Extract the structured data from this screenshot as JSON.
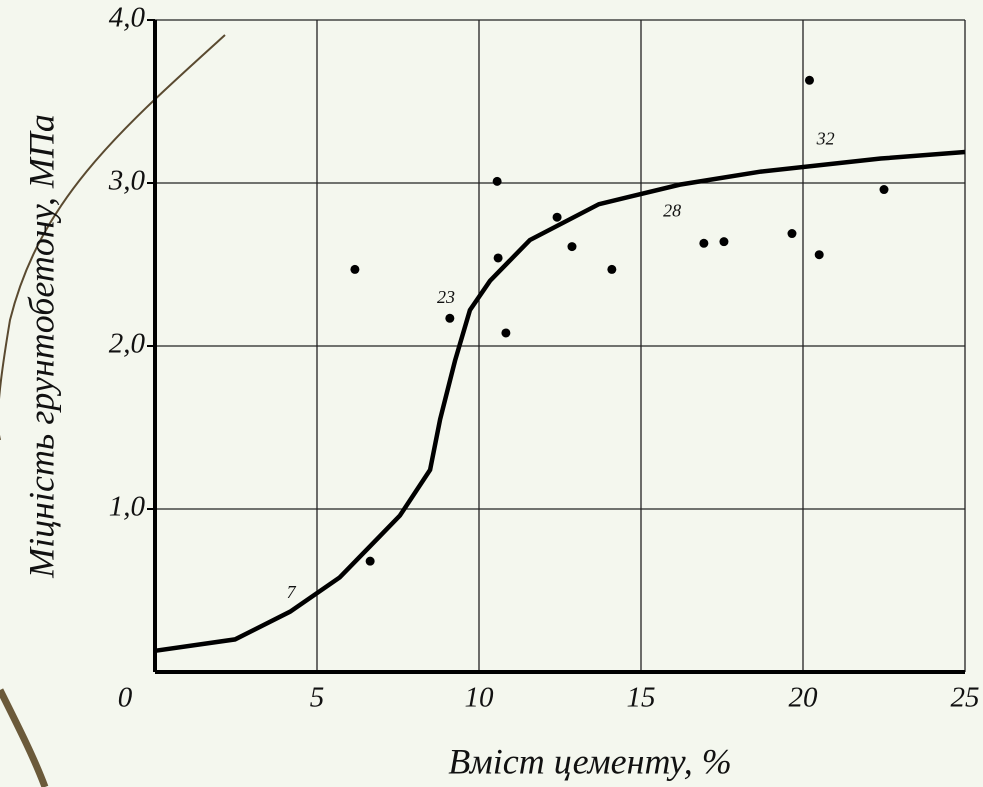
{
  "chart_data": {
    "type": "scatter",
    "x_label": "Вміст цементу, %",
    "y_label": "Міцність грунтобетону, МПа",
    "xlim": [
      0,
      25
    ],
    "ylim": [
      0,
      4
    ],
    "xticks": [
      0,
      5,
      10,
      15,
      20,
      25
    ],
    "yticks": [
      {
        "value": 1,
        "label": "1,0"
      },
      {
        "value": 2,
        "label": "2,0"
      },
      {
        "value": 3,
        "label": "3,0"
      },
      {
        "value": 4,
        "label": "4,0"
      }
    ],
    "grid": true,
    "color": "#000000",
    "points": {
      "x": [
        6.17,
        6.64,
        9.1,
        10.56,
        10.59,
        10.83,
        12.41,
        12.87,
        14.1,
        16.94,
        17.56,
        19.66,
        20.2,
        20.5,
        22.5
      ],
      "y": [
        2.47,
        0.68,
        2.17,
        3.01,
        2.54,
        2.08,
        2.79,
        2.61,
        2.47,
        2.63,
        2.64,
        2.69,
        3.63,
        2.56,
        2.96
      ]
    },
    "curve": {
      "x": [
        0,
        2.47,
        4.17,
        5.7,
        7.56,
        8.49,
        8.8,
        9.26,
        9.72,
        10.34,
        11.57,
        13.7,
        16.2,
        18.7,
        22.4,
        25
      ],
      "y": [
        0.13,
        0.2,
        0.37,
        0.58,
        0.96,
        1.24,
        1.55,
        1.91,
        2.22,
        2.4,
        2.65,
        2.87,
        2.99,
        3.07,
        3.15,
        3.19
      ]
    },
    "annotations": [
      {
        "text": "7",
        "x": 4.2,
        "y": 0.48
      },
      {
        "text": "23",
        "x": 8.98,
        "y": 2.29
      },
      {
        "text": "28",
        "x": 15.96,
        "y": 2.82
      },
      {
        "text": "32",
        "x": 20.7,
        "y": 3.26
      }
    ]
  }
}
